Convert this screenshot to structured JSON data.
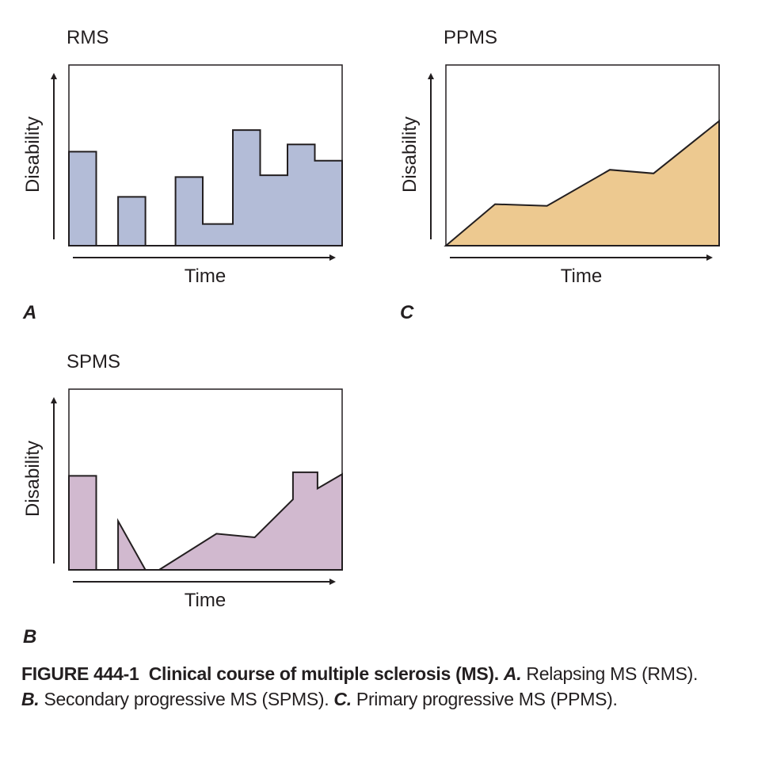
{
  "chart_data": [
    {
      "id": "A",
      "type": "area",
      "title": "RMS",
      "xlabel": "Time",
      "ylabel": "Disability",
      "panel_label": "A",
      "color": "#b3bcd7",
      "xlim": [
        0,
        100
      ],
      "ylim": [
        0,
        100
      ],
      "points": [
        [
          0,
          0
        ],
        [
          0,
          52
        ],
        [
          10,
          52
        ],
        [
          10,
          0
        ],
        [
          18,
          0
        ],
        [
          18,
          27
        ],
        [
          28,
          27
        ],
        [
          28,
          0
        ],
        [
          39,
          0
        ],
        [
          39,
          38
        ],
        [
          49,
          38
        ],
        [
          49,
          12
        ],
        [
          60,
          12
        ],
        [
          60,
          64
        ],
        [
          70,
          64
        ],
        [
          70,
          39
        ],
        [
          80,
          39
        ],
        [
          80,
          56
        ],
        [
          90,
          56
        ],
        [
          90,
          47
        ],
        [
          100,
          47
        ],
        [
          100,
          0
        ]
      ]
    },
    {
      "id": "B",
      "type": "area",
      "title": "SPMS",
      "xlabel": "Time",
      "ylabel": "Disability",
      "panel_label": "B",
      "color": "#d1b9cf",
      "xlim": [
        0,
        100
      ],
      "ylim": [
        0,
        100
      ],
      "points": [
        [
          0,
          0
        ],
        [
          0,
          52
        ],
        [
          10,
          52
        ],
        [
          10,
          0
        ],
        [
          18,
          0
        ],
        [
          18,
          27
        ],
        [
          28,
          0
        ],
        [
          33,
          0
        ],
        [
          54,
          20
        ],
        [
          68,
          18
        ],
        [
          82,
          39
        ],
        [
          82,
          54
        ],
        [
          91,
          54
        ],
        [
          91,
          45
        ],
        [
          100,
          53
        ],
        [
          100,
          0
        ]
      ]
    },
    {
      "id": "C",
      "type": "area",
      "title": "PPMS",
      "xlabel": "Time",
      "ylabel": "Disability",
      "panel_label": "C",
      "color": "#edc990",
      "xlim": [
        0,
        100
      ],
      "ylim": [
        0,
        100
      ],
      "points": [
        [
          0,
          0
        ],
        [
          18,
          23
        ],
        [
          37,
          22
        ],
        [
          60,
          42
        ],
        [
          76,
          40
        ],
        [
          100,
          69
        ],
        [
          100,
          0
        ]
      ]
    }
  ],
  "caption": {
    "figure_label": "FIGURE 444-1",
    "title": "Clinical course of multiple sclerosis (MS).",
    "items": [
      {
        "label": "A.",
        "text": "Relapsing MS (RMS)."
      },
      {
        "label": "B.",
        "text": "Secondary progressive MS (SPMS)."
      },
      {
        "label": "C.",
        "text": "Primary progressive MS (PPMS)."
      }
    ]
  }
}
